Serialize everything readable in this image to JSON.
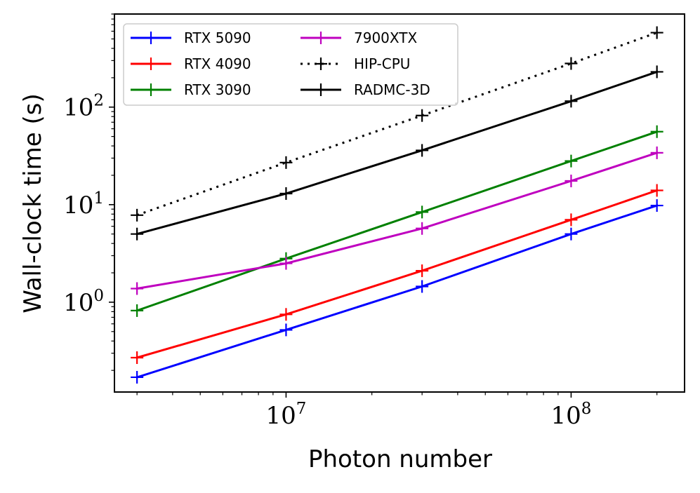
{
  "chart_data": {
    "type": "line",
    "xlabel": "Photon number",
    "ylabel": "Wall-clock time (s)",
    "xscale": "log",
    "yscale": "log",
    "xlim": [
      2500000,
      250000000
    ],
    "ylim": [
      0.12,
      900
    ],
    "x_ticks": [
      {
        "value": 10000000,
        "base": "10",
        "exp": "7"
      },
      {
        "value": 100000000,
        "base": "10",
        "exp": "8"
      }
    ],
    "y_ticks": [
      {
        "value": 1,
        "base": "10",
        "exp": "0"
      },
      {
        "value": 10,
        "base": "10",
        "exp": "1"
      },
      {
        "value": 100,
        "base": "10",
        "exp": "2"
      }
    ],
    "grid": false,
    "legend_position": "top-left",
    "x": [
      3000000,
      10000000,
      30000000,
      100000000,
      200000000
    ],
    "series": [
      {
        "name": "RTX 5090",
        "color": "#0000ff",
        "dash": "solid",
        "values": [
          0.17,
          0.52,
          1.45,
          5.0,
          9.8
        ]
      },
      {
        "name": "RTX 4090",
        "color": "#ff0000",
        "dash": "solid",
        "values": [
          0.27,
          0.75,
          2.1,
          7.0,
          14.0
        ]
      },
      {
        "name": "RTX 3090",
        "color": "#008000",
        "dash": "solid",
        "values": [
          0.82,
          2.8,
          8.4,
          28.0,
          56.0
        ]
      },
      {
        "name": "7900XTX",
        "color": "#bf00bf",
        "dash": "solid",
        "values": [
          1.38,
          2.5,
          5.7,
          17.5,
          34.0
        ]
      },
      {
        "name": "HIP-CPU",
        "color": "#000000",
        "dash": "dotted",
        "values": [
          7.8,
          27.0,
          82.0,
          280.0,
          580.0
        ]
      },
      {
        "name": "RADMC-3D",
        "color": "#000000",
        "dash": "solid",
        "values": [
          5.0,
          13.0,
          36.0,
          115.0,
          230.0
        ]
      }
    ]
  }
}
